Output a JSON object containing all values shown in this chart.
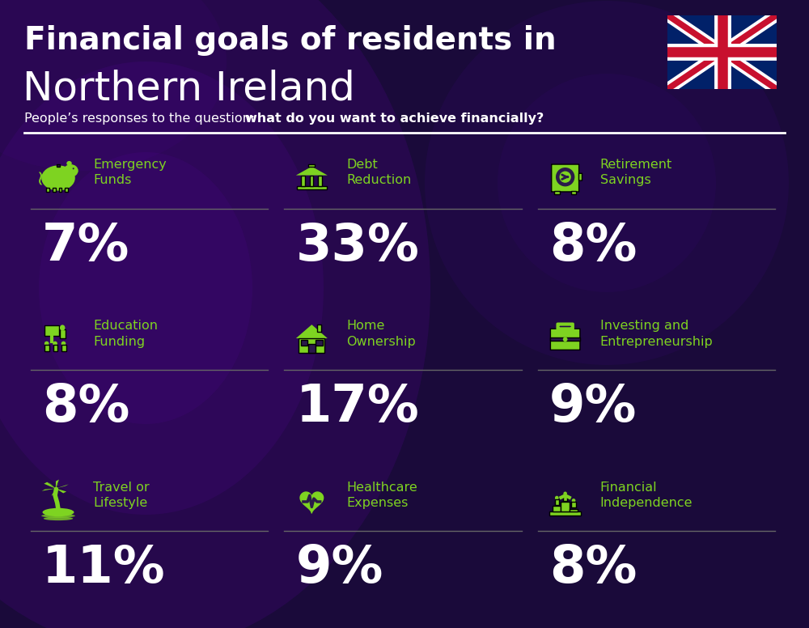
{
  "title_line1": "Financial goals of residents in",
  "title_line2": "Northern Ireland",
  "subtitle_normal": "People’s responses to the question: ",
  "subtitle_bold": "what do you want to achieve financially?",
  "bg_color": "#1a0a3a",
  "text_color": "#ffffff",
  "green_color": "#7ed321",
  "label_color": "#7ed321",
  "divider_color": "#aaaaaa",
  "cells": [
    {
      "label": "Emergency\nFunds",
      "value": "7%",
      "col": 0,
      "row": 0
    },
    {
      "label": "Debt\nReduction",
      "value": "33%",
      "col": 1,
      "row": 0
    },
    {
      "label": "Retirement\nSavings",
      "value": "8%",
      "col": 2,
      "row": 0
    },
    {
      "label": "Education\nFunding",
      "value": "8%",
      "col": 0,
      "row": 1
    },
    {
      "label": "Home\nOwnership",
      "value": "17%",
      "col": 1,
      "row": 1
    },
    {
      "label": "Investing and\nEntrepreneurship",
      "value": "9%",
      "col": 2,
      "row": 1
    },
    {
      "label": "Travel or\nLifestyle",
      "value": "11%",
      "col": 0,
      "row": 2
    },
    {
      "label": "Healthcare\nExpenses",
      "value": "9%",
      "col": 1,
      "row": 2
    },
    {
      "label": "Financial\nIndependence",
      "value": "8%",
      "col": 2,
      "row": 2
    }
  ]
}
